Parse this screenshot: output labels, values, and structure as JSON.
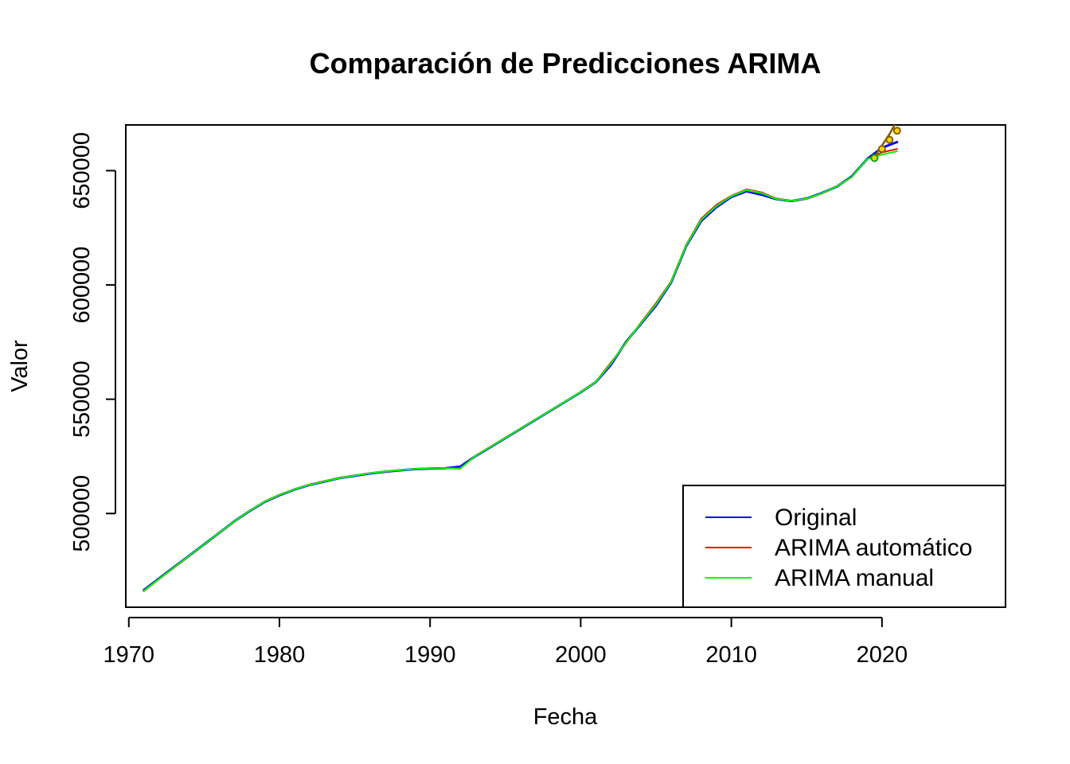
{
  "chart_data": {
    "type": "line",
    "title": "Comparación de Predicciones ARIMA",
    "xlabel": "Fecha",
    "ylabel": "Valor",
    "xlim": [
      1969.8,
      2028.2
    ],
    "ylim": [
      459000,
      670000
    ],
    "x_ticks": [
      1970,
      1980,
      1990,
      2000,
      2010,
      2020
    ],
    "y_ticks": [
      500000,
      550000,
      600000,
      650000
    ],
    "legend_position": "bottom-right",
    "series": [
      {
        "name": "Original",
        "color": "#0000ff",
        "x": [
          1971,
          1972,
          1973,
          1974,
          1975,
          1976,
          1977,
          1978,
          1979,
          1980,
          1981,
          1982,
          1983,
          1984,
          1985,
          1986,
          1987,
          1988,
          1989,
          1990,
          1991,
          1992,
          1993,
          1994,
          1995,
          1996,
          1997,
          1998,
          1999,
          2000,
          2001,
          2002,
          2003,
          2004,
          2005,
          2006,
          2007,
          2008,
          2009,
          2010,
          2011,
          2012,
          2013,
          2014,
          2015,
          2016,
          2017,
          2018,
          2019,
          2020,
          2021
        ],
        "y": [
          466500,
          471500,
          476500,
          481500,
          486500,
          491500,
          496500,
          501000,
          505000,
          508000,
          510500,
          512500,
          514000,
          515500,
          516500,
          517500,
          518300,
          518900,
          519400,
          519700,
          519800,
          520500,
          525000,
          529000,
          533000,
          537000,
          541000,
          545000,
          549000,
          553000,
          557500,
          565000,
          575000,
          583000,
          591000,
          601000,
          617000,
          628000,
          634000,
          638500,
          641000,
          639500,
          637500,
          636700,
          637800,
          640200,
          643000,
          647500,
          655000,
          660000,
          662500
        ]
      },
      {
        "name": "ARIMA automático",
        "color": "#ff0000",
        "x": [
          1971,
          1972,
          1973,
          1974,
          1975,
          1976,
          1977,
          1978,
          1979,
          1980,
          1981,
          1982,
          1983,
          1984,
          1985,
          1986,
          1987,
          1988,
          1989,
          1990,
          1991,
          1992,
          1993,
          1994,
          1995,
          1996,
          1997,
          1998,
          1999,
          2000,
          2001,
          2002,
          2003,
          2004,
          2005,
          2006,
          2007,
          2008,
          2009,
          2010,
          2011,
          2012,
          2013,
          2014,
          2015,
          2016,
          2017,
          2018,
          2019,
          2020,
          2021
        ],
        "y": [
          466000,
          471200,
          476300,
          481400,
          486500,
          491500,
          496400,
          501100,
          505200,
          508200,
          510600,
          512700,
          514200,
          515600,
          516700,
          517600,
          518400,
          519000,
          519500,
          519800,
          519900,
          519600,
          525200,
          529200,
          533100,
          537100,
          541100,
          545100,
          549100,
          553100,
          557600,
          566000,
          574500,
          583500,
          592000,
          601500,
          617500,
          629000,
          635000,
          639000,
          641800,
          640500,
          637800,
          636800,
          637700,
          640000,
          643200,
          647200,
          655000,
          658000,
          659500
        ]
      },
      {
        "name": "ARIMA manual",
        "color": "#00ff00",
        "x": [
          1971,
          1972,
          1973,
          1974,
          1975,
          1976,
          1977,
          1978,
          1979,
          1980,
          1981,
          1982,
          1983,
          1984,
          1985,
          1986,
          1987,
          1988,
          1989,
          1990,
          1991,
          1992,
          1993,
          1994,
          1995,
          1996,
          1997,
          1998,
          1999,
          2000,
          2001,
          2002,
          2003,
          2004,
          2005,
          2006,
          2007,
          2008,
          2009,
          2010,
          2011,
          2012,
          2013,
          2014,
          2015,
          2016,
          2017,
          2018,
          2019,
          2020,
          2021
        ],
        "y": [
          466200,
          471300,
          476400,
          481450,
          486500,
          491500,
          496450,
          501050,
          505100,
          508100,
          510550,
          512600,
          514100,
          515550,
          516600,
          517550,
          518350,
          518950,
          519450,
          519750,
          519850,
          519700,
          525100,
          529100,
          533050,
          537050,
          541050,
          545050,
          549050,
          553050,
          557550,
          565500,
          574800,
          583200,
          591500,
          601200,
          617200,
          628500,
          634500,
          638800,
          641500,
          640200,
          637600,
          636750,
          637750,
          640100,
          643100,
          647300,
          655000,
          657000,
          658500
        ]
      }
    ],
    "forecast_upper": {
      "color": "#806000",
      "x": [
        2019.5,
        2020.0,
        2020.5,
        2021.0
      ],
      "y": [
        656000,
        661000,
        666000,
        672000
      ]
    },
    "forecast_points": {
      "x": [
        2019.5,
        2020.0,
        2020.5,
        2021.0
      ],
      "y": [
        655500,
        659500,
        663500,
        667500
      ]
    }
  }
}
